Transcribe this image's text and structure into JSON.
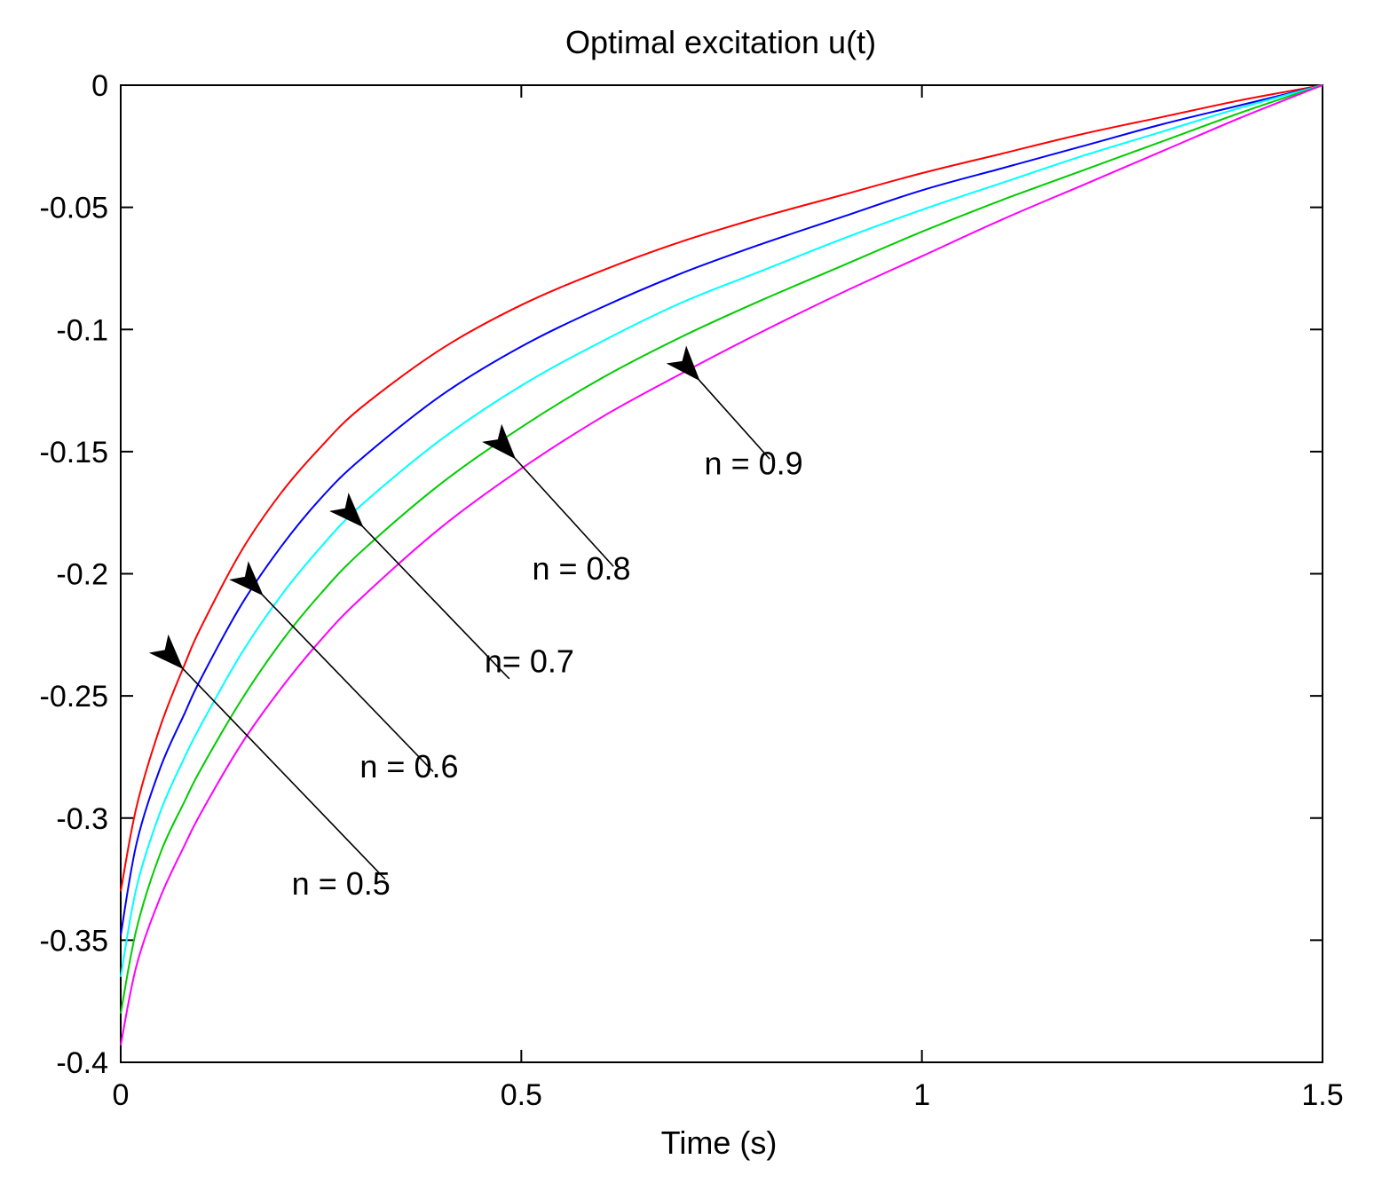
{
  "chart_data": {
    "type": "line",
    "title": "Optimal excitation u(t)",
    "xlabel": "Time (s)",
    "ylabel": "",
    "xlim": [
      0,
      1.5
    ],
    "ylim": [
      -0.4,
      0
    ],
    "grid": false,
    "x_ticks": [
      0,
      0.5,
      1,
      1.5
    ],
    "x_tick_labels": [
      "0",
      "0.5",
      "1",
      "1.5"
    ],
    "y_ticks": [
      0,
      -0.05,
      -0.1,
      -0.15,
      -0.2,
      -0.25,
      -0.3,
      -0.35,
      -0.4
    ],
    "y_tick_labels": [
      "0",
      "-0.05",
      "-0.1",
      "-0.15",
      "-0.2",
      "-0.25",
      "-0.3",
      "-0.35",
      "-0.4"
    ],
    "x": [
      0,
      0.02,
      0.05,
      0.08,
      0.1,
      0.15,
      0.2,
      0.25,
      0.3,
      0.4,
      0.5,
      0.6,
      0.7,
      0.8,
      0.9,
      1.0,
      1.1,
      1.2,
      1.3,
      1.4,
      1.5
    ],
    "series": [
      {
        "name": "n = 0.5",
        "color": "#ff0000",
        "values": [
          -0.33,
          -0.295,
          -0.262,
          -0.237,
          -0.222,
          -0.191,
          -0.167,
          -0.148,
          -0.132,
          -0.108,
          -0.09,
          -0.076,
          -0.064,
          -0.054,
          -0.045,
          -0.036,
          -0.028,
          -0.02,
          -0.013,
          -0.006,
          0
        ]
      },
      {
        "name": "n = 0.6",
        "color": "#0000ff",
        "values": [
          -0.348,
          -0.31,
          -0.279,
          -0.257,
          -0.243,
          -0.213,
          -0.189,
          -0.169,
          -0.153,
          -0.127,
          -0.107,
          -0.091,
          -0.077,
          -0.065,
          -0.054,
          -0.043,
          -0.034,
          -0.025,
          -0.016,
          -0.008,
          0
        ]
      },
      {
        "name": "n = 0.7",
        "color": "#00ffff",
        "values": [
          -0.365,
          -0.328,
          -0.297,
          -0.275,
          -0.262,
          -0.233,
          -0.209,
          -0.189,
          -0.172,
          -0.145,
          -0.123,
          -0.105,
          -0.089,
          -0.076,
          -0.063,
          -0.051,
          -0.04,
          -0.029,
          -0.019,
          -0.009,
          0
        ]
      },
      {
        "name": "n = 0.8",
        "color": "#00cc00",
        "values": [
          -0.38,
          -0.345,
          -0.314,
          -0.293,
          -0.28,
          -0.252,
          -0.228,
          -0.208,
          -0.191,
          -0.163,
          -0.14,
          -0.12,
          -0.103,
          -0.088,
          -0.074,
          -0.06,
          -0.047,
          -0.035,
          -0.023,
          -0.011,
          0
        ]
      },
      {
        "name": "n = 0.9",
        "color": "#ff00ff",
        "values": [
          -0.393,
          -0.36,
          -0.332,
          -0.311,
          -0.298,
          -0.27,
          -0.247,
          -0.227,
          -0.21,
          -0.181,
          -0.157,
          -0.136,
          -0.118,
          -0.101,
          -0.085,
          -0.07,
          -0.055,
          -0.041,
          -0.027,
          -0.013,
          0
        ]
      }
    ],
    "annotations": [
      {
        "text": "n = 0.5",
        "series": "n = 0.5",
        "label_at": [
          0.275,
          -0.327
        ],
        "arrow_tail": [
          0.33,
          -0.325
        ],
        "arrow_head": [
          0.075,
          -0.238
        ]
      },
      {
        "text": "n = 0.6",
        "series": "n = 0.6",
        "label_at": [
          0.36,
          -0.279
        ],
        "arrow_tail": [
          0.39,
          -0.281
        ],
        "arrow_head": [
          0.175,
          -0.208
        ]
      },
      {
        "text": "n= 0.7",
        "series": "n = 0.7",
        "label_at": [
          0.51,
          -0.236
        ],
        "arrow_tail": [
          0.485,
          -0.243
        ],
        "arrow_head": [
          0.3,
          -0.18
        ]
      },
      {
        "text": "n = 0.8",
        "series": "n = 0.8",
        "label_at": [
          0.575,
          -0.198
        ],
        "arrow_tail": [
          0.615,
          -0.197
        ],
        "arrow_head": [
          0.49,
          -0.152
        ]
      },
      {
        "text": "n = 0.9",
        "series": "n = 0.9",
        "label_at": [
          0.79,
          -0.155
        ],
        "arrow_tail": [
          0.81,
          -0.153
        ],
        "arrow_head": [
          0.72,
          -0.12
        ]
      }
    ]
  }
}
